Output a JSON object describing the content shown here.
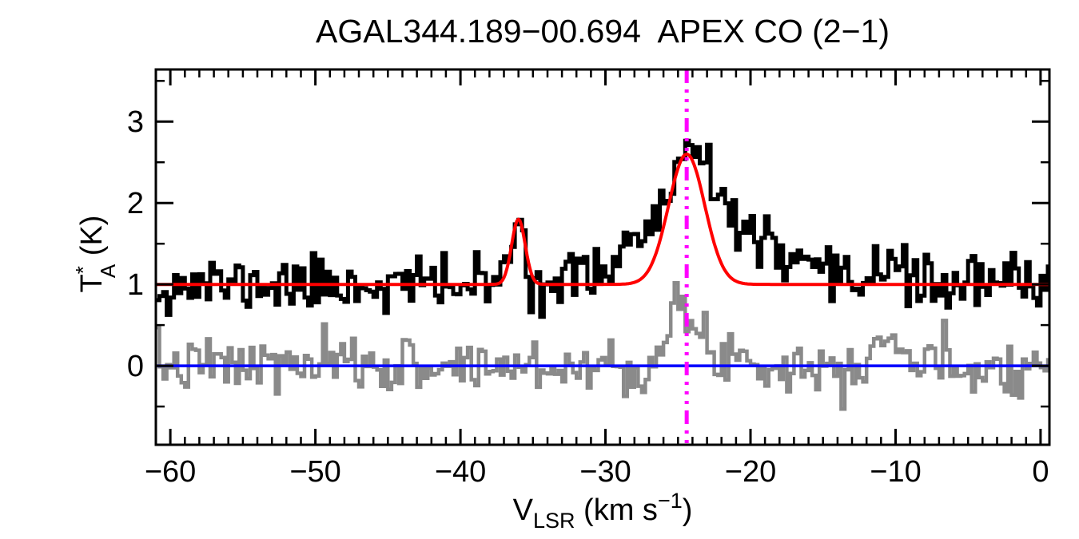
{
  "chart_data": {
    "type": "line",
    "title": "AGAL344.189−00.694  APEX CO (2−1)",
    "xlabel": {
      "main": "V",
      "sub": "LSR",
      "unit_pre": " (km s",
      "unit_sup": "−1",
      "unit_post": ")"
    },
    "ylabel": {
      "main": "T",
      "sup": "*",
      "sub": "A",
      "unit": " (K)"
    },
    "xlim": [
      -61.0,
      0.61
    ],
    "ylim": [
      -0.97,
      3.64
    ],
    "x_axis": {
      "major_ticks": [
        -60,
        -50,
        -40,
        -30,
        -20,
        -10,
        0
      ],
      "tick_labels": [
        "−60",
        "−50",
        "−40",
        "−30",
        "−20",
        "−10",
        "0"
      ],
      "minor_step": 1
    },
    "y_axis": {
      "major_ticks": [
        0,
        1,
        2,
        3
      ],
      "tick_labels": [
        "0",
        "1",
        "2",
        "3"
      ],
      "minor_step": 0.5
    },
    "axis_color": "#000000",
    "series": [
      {
        "id": "residual",
        "name": "residual spectrum",
        "style": "histogram",
        "color": "#8A8A8A",
        "line_width": 4.5,
        "baseline": 0.0,
        "channel_width": 0.25,
        "noise_sigma": 0.17,
        "noise_seed": 7,
        "components": [
          {
            "center": -24.9,
            "amplitude": 0.55,
            "sigma": 0.7
          },
          {
            "center": -23.0,
            "amplitude": 0.22,
            "sigma": 2.2
          },
          {
            "center": -10.7,
            "amplitude": 0.38,
            "sigma": 1.0
          }
        ]
      },
      {
        "id": "spectrum",
        "name": "CO (2-1) spectrum",
        "style": "histogram",
        "color": "#000000",
        "line_width": 5,
        "baseline": 1.0,
        "channel_width": 0.25,
        "noise_sigma": 0.17,
        "noise_seed": 11,
        "components": [
          {
            "center": -36.0,
            "amplitude": 0.8,
            "sigma": 0.47
          },
          {
            "center": -24.4,
            "amplitude": 1.6,
            "sigma": 1.25
          },
          {
            "center": -27.5,
            "amplitude": 0.55,
            "sigma_left": 2.0,
            "sigma_right": 1.0
          },
          {
            "center": -22.0,
            "amplitude": 0.8,
            "sigma_left": 0.9,
            "sigma_right": 3.0
          },
          {
            "center": -10.7,
            "amplitude": 0.33,
            "sigma": 0.9
          }
        ]
      },
      {
        "id": "fit",
        "name": "Gaussian fit",
        "style": "curve",
        "color": "#FF0000",
        "line_width": 4,
        "baseline": 1.0,
        "components": [
          {
            "center": -36.0,
            "amplitude": 0.8,
            "sigma": 0.47
          },
          {
            "center": -24.4,
            "amplitude": 1.6,
            "sigma": 1.25
          }
        ]
      },
      {
        "id": "zero_line",
        "name": "zero level",
        "style": "hline",
        "color": "#0000FF",
        "line_width": 3.5,
        "y": 0.0
      },
      {
        "id": "vlsr_marker",
        "name": "systemic velocity marker",
        "style": "vline",
        "color": "#FF00FF",
        "line_width": 5,
        "x": -24.4,
        "dash": [
          17,
          8,
          4,
          8,
          4,
          8,
          4,
          8
        ]
      }
    ]
  }
}
